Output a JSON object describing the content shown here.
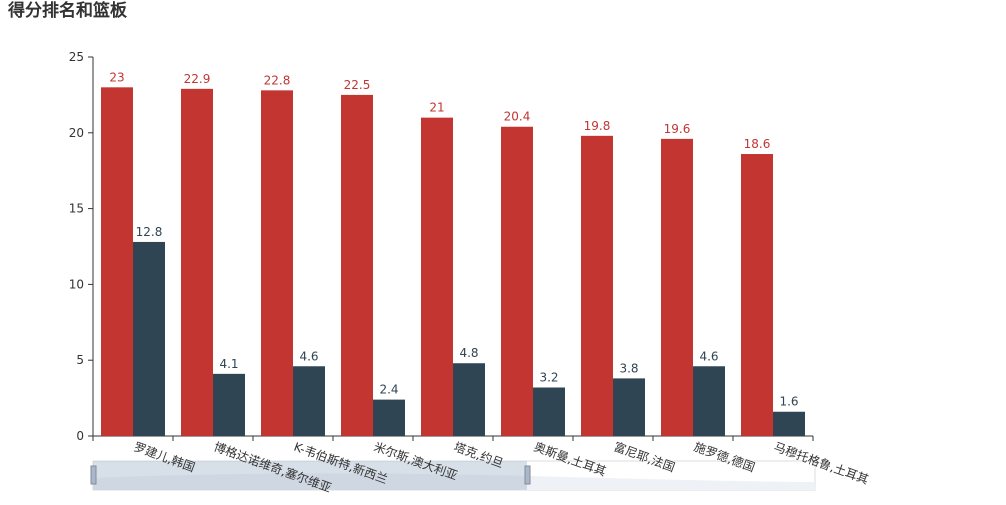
{
  "chart_data": {
    "type": "bar",
    "title": "得分排名和篮板",
    "categories": [
      "罗建儿,韩国",
      "博格达诺维奇,塞尔维亚",
      "K-韦伯斯特,新西兰",
      "米尔斯,澳大利亚",
      "塔克,约旦",
      "奥斯曼,土耳其",
      "富尼耶,法国",
      "施罗德,德国",
      "马穆托格鲁,土耳其"
    ],
    "series": [
      {
        "color": "#c23531",
        "values": [
          23,
          22.9,
          22.8,
          22.5,
          21,
          20.4,
          19.8,
          19.6,
          18.6
        ]
      },
      {
        "color": "#2f4554",
        "values": [
          12.8,
          4.1,
          4.6,
          2.4,
          4.8,
          3.2,
          3.8,
          4.6,
          1.6
        ]
      }
    ],
    "ylim": [
      0,
      25
    ],
    "yticks": [
      0,
      5,
      10,
      15,
      20,
      25
    ],
    "grid": false
  }
}
